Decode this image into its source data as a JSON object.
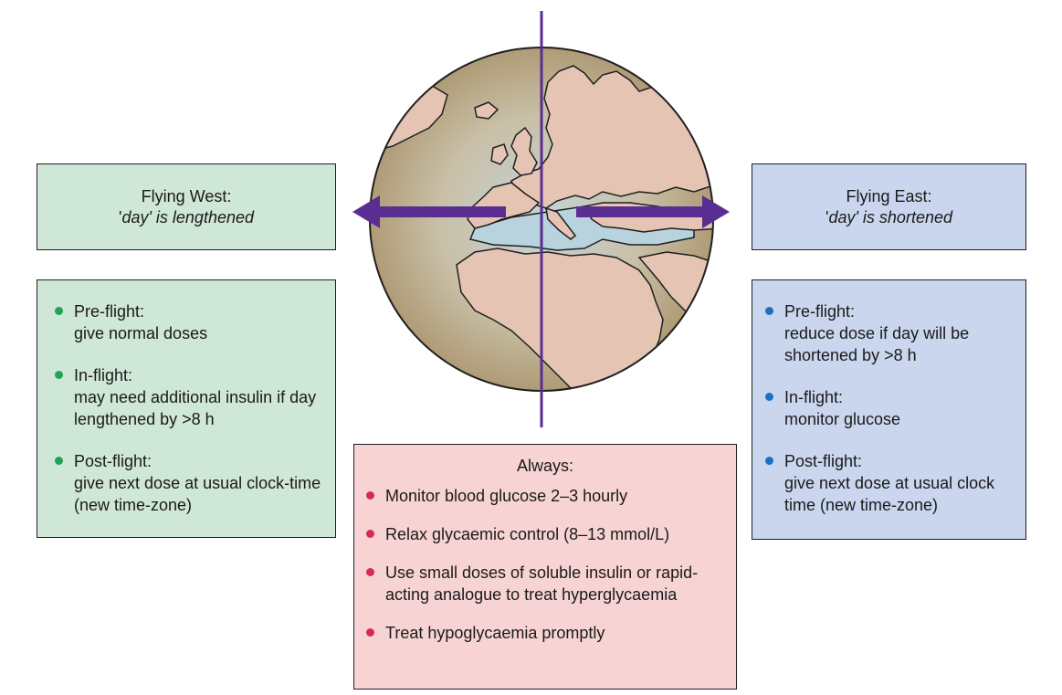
{
  "west": {
    "title": "Flying West:",
    "day_word": "day",
    "day_suffix": "' is lengthened",
    "color": "#cfe7d6",
    "bullet_color": "#1fa25a",
    "items": [
      {
        "heading": "Pre-flight:",
        "text": "give normal doses"
      },
      {
        "heading": "In-flight:",
        "text": "may need additional insulin if day lengthened by >8 h"
      },
      {
        "heading": "Post-flight:",
        "text": "give next dose at usual clock-time (new time-zone)"
      }
    ]
  },
  "east": {
    "title": "Flying East:",
    "day_word": "day",
    "day_suffix": "' is shortened",
    "color": "#c9d6ee",
    "bullet_color": "#1f6fbf",
    "items": [
      {
        "heading": "Pre-flight:",
        "text": "reduce dose if day will be shortened by >8 h"
      },
      {
        "heading": "In-flight:",
        "text": "monitor glucose"
      },
      {
        "heading": "Post-flight:",
        "text": "give next dose at usual clock time (new time-zone)"
      }
    ]
  },
  "always": {
    "title": "Always:",
    "color": "#f7d3d3",
    "bullet_color": "#d42a5e",
    "items": [
      "Monitor blood glucose 2–3 hourly",
      "Relax glycaemic control (8–13 mmol/L)",
      "Use small doses of soluble insulin or rapid-acting analogue to treat hyperglycaemia",
      "Treat hypoglycaemia promptly"
    ]
  },
  "globe": {
    "land_color": "#e6c4b4",
    "sea_color": "#b8d3de",
    "arrow_color": "#5a2e91",
    "meridian_color": "#5a2e91",
    "west_arrow_icon": "left-arrow-icon",
    "east_arrow_icon": "right-arrow-icon"
  }
}
